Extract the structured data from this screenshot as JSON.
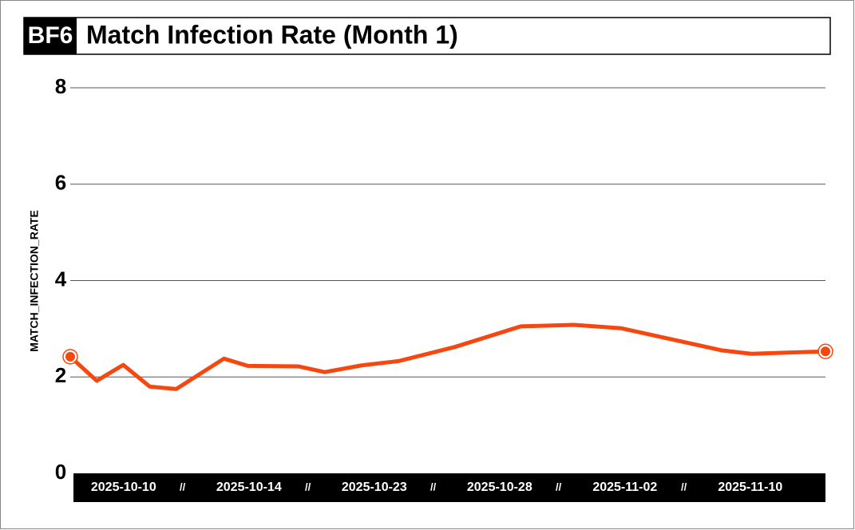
{
  "chart_data": {
    "type": "line",
    "badge": "BF6",
    "title": "Match Infection Rate (Month 1)",
    "y_label": "MATCH_INFECTION_RATE",
    "x": [
      0,
      1.0,
      2.0,
      3.0,
      4.0,
      5.8,
      6.7,
      8.6,
      9.6,
      11.0,
      12.4,
      14.5,
      17.0,
      19.0,
      20.8,
      24.6,
      25.7,
      28.5
    ],
    "xlim": [
      0,
      28.5
    ],
    "series": [
      {
        "name": "match_infection_rate",
        "color": "#f5470f",
        "values": [
          2.42,
          1.92,
          2.25,
          1.8,
          1.75,
          2.38,
          2.23,
          2.22,
          2.1,
          2.24,
          2.33,
          2.62,
          3.05,
          3.08,
          3.01,
          2.55,
          2.48,
          2.53
        ]
      }
    ],
    "x_labels": [
      "2025-10-10",
      "2025-10-14",
      "2025-10-23",
      "2025-10-28",
      "2025-11-02",
      "2025-11-10"
    ],
    "x_separator": "//",
    "ylim": [
      0,
      8
    ],
    "yticks": [
      0,
      2,
      4,
      6,
      8
    ],
    "grid": true
  }
}
